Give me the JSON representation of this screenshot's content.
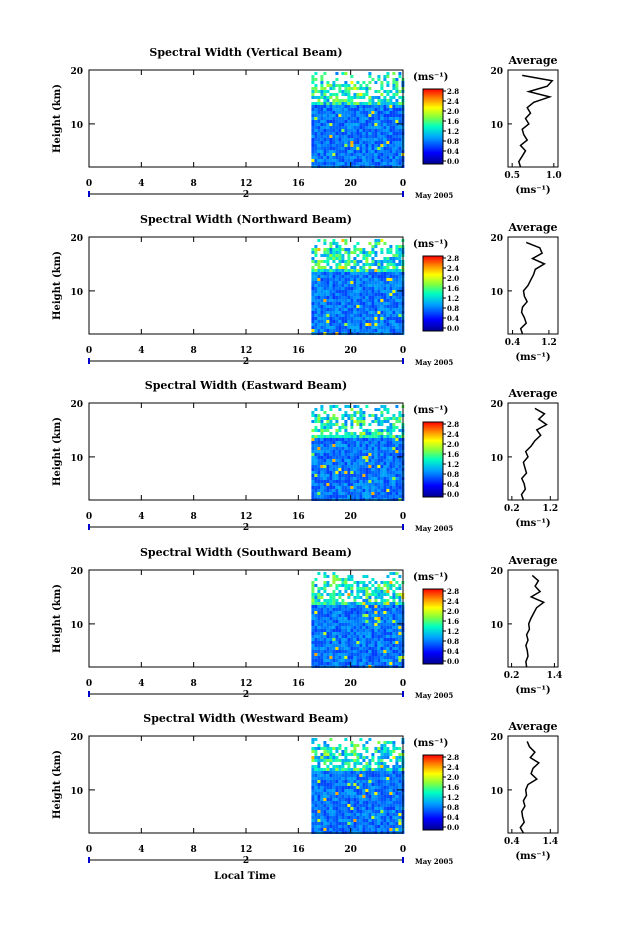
{
  "chart_data": [
    {
      "type": "heatmap",
      "title": "Spectral Width (Vertical Beam)",
      "ylabel": "Height (km)",
      "xlabel": "Local Time",
      "x_ticks": [
        "0",
        "4",
        "8",
        "12",
        "16",
        "20",
        "0"
      ],
      "y_ticks": [
        "20",
        "10"
      ],
      "day_label": "2",
      "date_label": "May 2005",
      "colorbar": {
        "unit": "(ms⁻¹)",
        "ticks": [
          "2.8",
          "2.4",
          "2.0",
          "1.6",
          "1.2",
          "0.8",
          "0.4",
          "0.0"
        ],
        "range": [
          0.0,
          3.0
        ]
      },
      "data_time_range_h": [
        17,
        24
      ],
      "profile": {
        "title": "Average",
        "xlabel": "(ms⁻¹)",
        "x_ticks": [
          "0.5",
          "1.0"
        ],
        "xlim": [
          0.45,
          1.05
        ],
        "y_ticks": [
          "20",
          "10"
        ],
        "ylim": [
          2,
          20
        ],
        "heights_km": [
          2,
          3,
          4,
          5,
          6,
          7,
          8,
          9,
          10,
          11,
          12,
          13,
          14,
          15,
          16,
          17,
          18,
          19
        ],
        "values": [
          0.6,
          0.58,
          0.62,
          0.66,
          0.6,
          0.68,
          0.64,
          0.62,
          0.7,
          0.66,
          0.72,
          0.68,
          0.76,
          0.95,
          0.7,
          0.92,
          0.98,
          0.62
        ]
      }
    },
    {
      "type": "heatmap",
      "title": "Spectral Width (Northward Beam)",
      "ylabel": "Height (km)",
      "xlabel": "Local Time",
      "x_ticks": [
        "0",
        "4",
        "8",
        "12",
        "16",
        "20",
        "0"
      ],
      "y_ticks": [
        "20",
        "10"
      ],
      "day_label": "2",
      "date_label": "May 2005",
      "colorbar": {
        "unit": "(ms⁻¹)",
        "ticks": [
          "2.8",
          "2.4",
          "2.0",
          "1.6",
          "1.2",
          "0.8",
          "0.4",
          "0.0"
        ],
        "range": [
          0.0,
          3.0
        ]
      },
      "data_time_range_h": [
        17,
        24
      ],
      "profile": {
        "title": "Average",
        "xlabel": "(ms⁻¹)",
        "x_ticks": [
          "0.4",
          "1.2"
        ],
        "xlim": [
          0.3,
          1.4
        ],
        "y_ticks": [
          "20",
          "10"
        ],
        "ylim": [
          2,
          20
        ],
        "heights_km": [
          2,
          3,
          4,
          5,
          6,
          7,
          8,
          9,
          10,
          11,
          12,
          13,
          14,
          15,
          16,
          17,
          18,
          19
        ],
        "values": [
          0.62,
          0.58,
          0.7,
          0.66,
          0.6,
          0.62,
          0.72,
          0.66,
          0.64,
          0.74,
          0.8,
          0.86,
          0.9,
          1.1,
          0.84,
          1.05,
          1.0,
          0.7
        ]
      }
    },
    {
      "type": "heatmap",
      "title": "Spectral Width (Eastward Beam)",
      "ylabel": "Height (km)",
      "xlabel": "Local Time",
      "x_ticks": [
        "0",
        "4",
        "8",
        "12",
        "16",
        "20",
        "0"
      ],
      "y_ticks": [
        "20",
        "10"
      ],
      "day_label": "2",
      "date_label": "May 2005",
      "colorbar": {
        "unit": "(ms⁻¹)",
        "ticks": [
          "2.8",
          "2.4",
          "2.0",
          "1.6",
          "1.2",
          "0.8",
          "0.4",
          "0.0"
        ],
        "range": [
          0.0,
          3.0
        ]
      },
      "data_time_range_h": [
        17,
        24
      ],
      "profile": {
        "title": "Average",
        "xlabel": "(ms⁻¹)",
        "x_ticks": [
          "0.2",
          "1.2"
        ],
        "xlim": [
          0.1,
          1.4
        ],
        "y_ticks": [
          "20",
          "10"
        ],
        "ylim": [
          2,
          20
        ],
        "heights_km": [
          2,
          3,
          4,
          5,
          6,
          7,
          8,
          9,
          10,
          11,
          12,
          13,
          14,
          15,
          16,
          17,
          18,
          19
        ],
        "values": [
          0.5,
          0.45,
          0.55,
          0.52,
          0.46,
          0.58,
          0.54,
          0.5,
          0.62,
          0.56,
          0.7,
          0.8,
          0.95,
          0.85,
          1.1,
          0.9,
          1.05,
          0.8
        ]
      }
    },
    {
      "type": "heatmap",
      "title": "Spectral Width (Southward Beam)",
      "ylabel": "Height (km)",
      "xlabel": "Local Time",
      "x_ticks": [
        "0",
        "4",
        "8",
        "12",
        "16",
        "20",
        "0"
      ],
      "y_ticks": [
        "20",
        "10"
      ],
      "day_label": "2",
      "date_label": "May 2005",
      "colorbar": {
        "unit": "(ms⁻¹)",
        "ticks": [
          "2.8",
          "2.4",
          "2.0",
          "1.6",
          "1.2",
          "0.8",
          "0.4",
          "0.0"
        ],
        "range": [
          0.0,
          3.0
        ]
      },
      "data_time_range_h": [
        17,
        24
      ],
      "profile": {
        "title": "Average",
        "xlabel": "(ms⁻¹)",
        "x_ticks": [
          "0.2",
          "1.4"
        ],
        "xlim": [
          0.1,
          1.5
        ],
        "y_ticks": [
          "20",
          "10"
        ],
        "ylim": [
          2,
          20
        ],
        "heights_km": [
          2,
          3,
          4,
          5,
          6,
          7,
          8,
          9,
          10,
          11,
          12,
          13,
          14,
          15,
          16,
          17,
          18,
          19
        ],
        "values": [
          0.62,
          0.6,
          0.66,
          0.64,
          0.6,
          0.66,
          0.62,
          0.7,
          0.68,
          0.74,
          0.82,
          0.9,
          1.1,
          0.75,
          1.0,
          0.86,
          0.95,
          0.78
        ]
      }
    },
    {
      "type": "heatmap",
      "title": "Spectral Width (Westward Beam)",
      "ylabel": "Height (km)",
      "xlabel": "Local Time",
      "x_ticks": [
        "0",
        "4",
        "8",
        "12",
        "16",
        "20",
        "0"
      ],
      "y_ticks": [
        "20",
        "10"
      ],
      "day_label": "2",
      "date_label": "May 2005",
      "colorbar": {
        "unit": "(ms⁻¹)",
        "ticks": [
          "2.8",
          "2.4",
          "2.0",
          "1.6",
          "1.2",
          "0.8",
          "0.4",
          "0.0"
        ],
        "range": [
          0.0,
          3.0
        ]
      },
      "data_time_range_h": [
        17,
        24
      ],
      "profile": {
        "title": "Average",
        "xlabel": "(ms⁻¹)",
        "x_ticks": [
          "0.4",
          "1.4"
        ],
        "xlim": [
          0.3,
          1.6
        ],
        "y_ticks": [
          "20",
          "10"
        ],
        "ylim": [
          2,
          20
        ],
        "heights_km": [
          2,
          3,
          4,
          5,
          6,
          7,
          8,
          9,
          10,
          11,
          12,
          13,
          14,
          15,
          16,
          17,
          18,
          19
        ],
        "values": [
          0.7,
          0.62,
          0.72,
          0.68,
          0.66,
          0.74,
          0.7,
          0.78,
          0.76,
          0.82,
          1.05,
          0.9,
          0.95,
          1.1,
          0.88,
          1.0,
          0.86,
          0.8
        ]
      }
    }
  ],
  "figure": {
    "xlabel": "Local Time"
  },
  "colors": {
    "background": "#ffffff",
    "axis": "#000000",
    "day_marker": "#0000cc"
  }
}
